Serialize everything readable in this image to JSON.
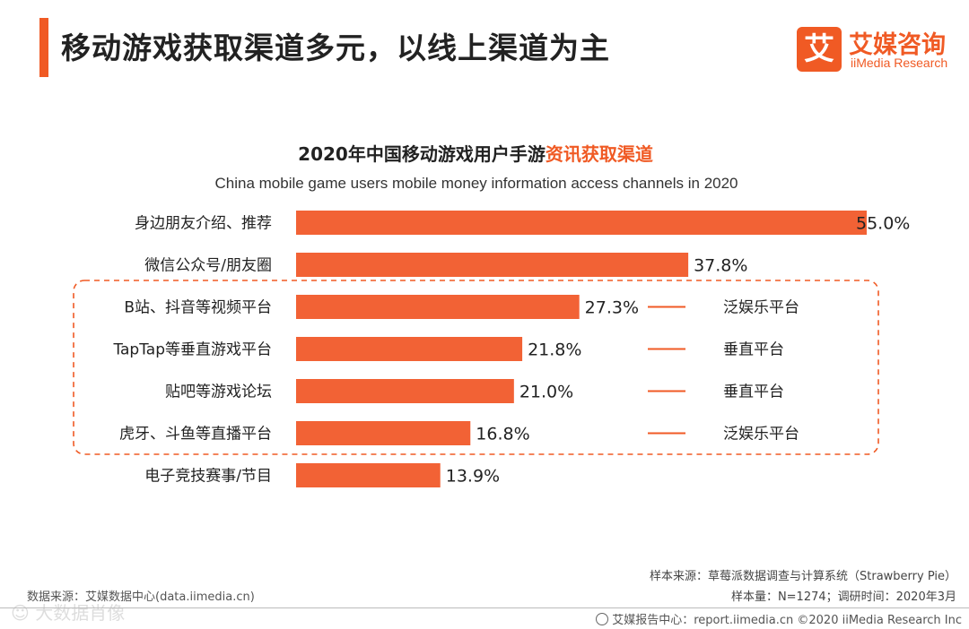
{
  "header": {
    "title": "移动游戏获取渠道多元，以线上渠道为主"
  },
  "logo": {
    "mark": "艾",
    "cn": "艾媒咨询",
    "en": "iiMedia Research"
  },
  "colors": {
    "accent": "#f05a24",
    "bar": "#f26235"
  },
  "chart_data": {
    "type": "bar",
    "orientation": "horizontal",
    "title_prefix": "2020年中国移动游戏用户手游",
    "title_highlight": "资讯获取渠道",
    "subtitle": "China mobile game users mobile money information access channels in 2020",
    "categories": [
      "身边朋友介绍、推荐",
      "微信公众号/朋友圈",
      "B站、抖音等视频平台",
      "TapTap等垂直游戏平台",
      "贴吧等游戏论坛",
      "虎牙、斗鱼等直播平台",
      "电子竞技赛事/节目"
    ],
    "values": [
      55.0,
      37.8,
      27.3,
      21.8,
      21.0,
      16.8,
      13.9
    ],
    "value_labels": [
      "55.0%",
      "37.8%",
      "27.3%",
      "21.8%",
      "21.0%",
      "16.8%",
      "13.9%"
    ],
    "xlim": [
      0,
      55
    ],
    "annotations": [
      {
        "category": "B站、抖音等视频平台",
        "text": "泛娱乐平台"
      },
      {
        "category": "TapTap等垂直游戏平台",
        "text": "垂直平台"
      },
      {
        "category": "贴吧等游戏论坛",
        "text": "垂直平台"
      },
      {
        "category": "虎牙、斗鱼等直播平台",
        "text": "泛娱乐平台"
      }
    ],
    "highlight_group": [
      "B站、抖音等视频平台",
      "TapTap等垂直游戏平台",
      "贴吧等游戏论坛",
      "虎牙、斗鱼等直播平台"
    ]
  },
  "footer": {
    "data_source": "数据来源：艾媒数据中心(data.iimedia.cn)",
    "sample_source": "样本来源：草莓派数据调查与计算系统（Strawberry  Pie）",
    "sample_info": "样本量：N=1274；调研时间：2020年3月",
    "report_center": "艾媒报告中心：report.iimedia.cn  ©2020  iiMedia Research  Inc",
    "watermark": "☺ 大数据肖像"
  }
}
